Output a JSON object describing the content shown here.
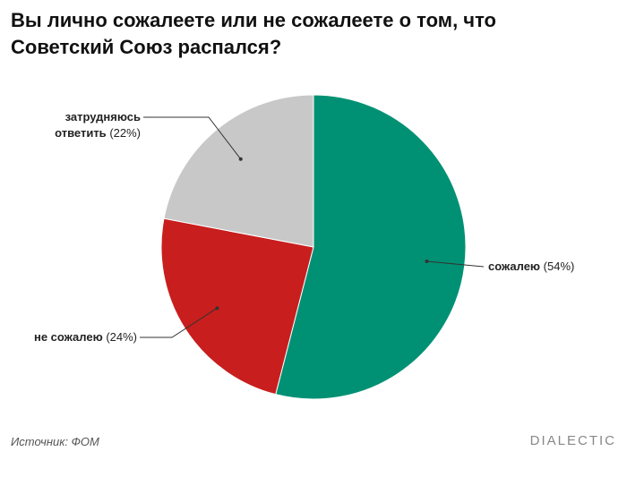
{
  "chart_data": {
    "type": "pie",
    "title": "Вы лично сожалеете или не сожалеете о том, что Советский Союз распался?",
    "categories": [
      "сожалею",
      "не сожалею",
      "затрудняюсь ответить"
    ],
    "values": [
      54,
      24,
      22
    ],
    "value_labels": [
      "(54%)",
      "(24%)",
      "(22%)"
    ],
    "colors": [
      "#009174",
      "#c81e1e",
      "#c8c8c8"
    ],
    "source": "Источник: ФОМ",
    "brand": "DIALECTIC"
  }
}
